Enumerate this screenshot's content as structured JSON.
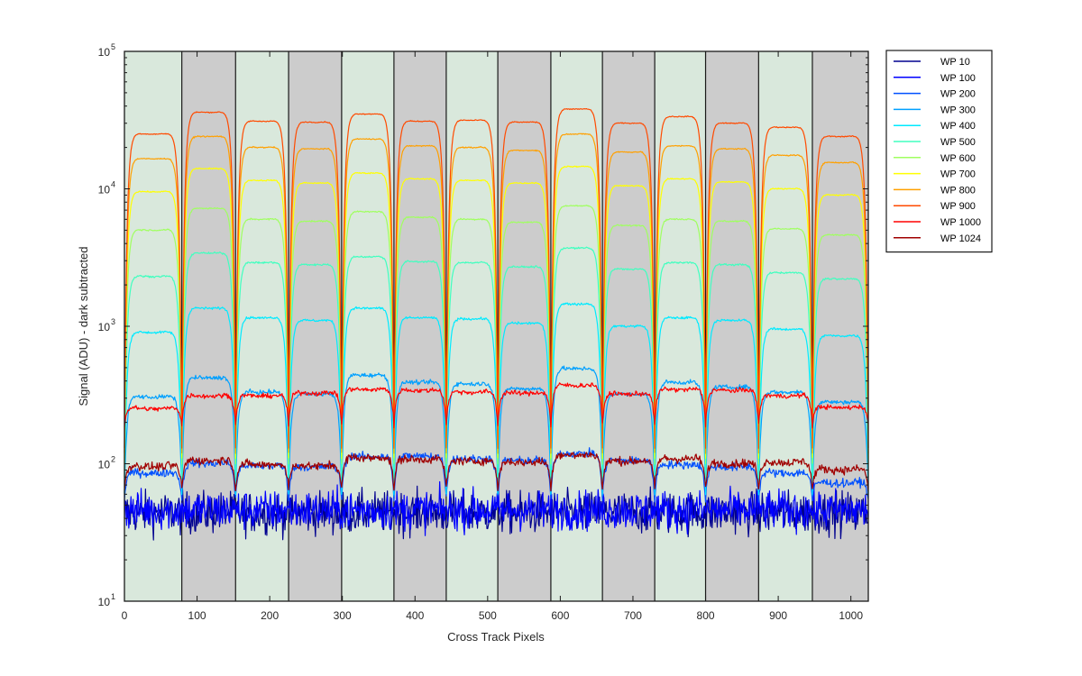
{
  "chart_data": {
    "type": "line",
    "title": "",
    "xlabel": "Cross Track Pixels",
    "ylabel": "Signal (ADU) - dark subtracted",
    "xlim": [
      0,
      1024
    ],
    "ylim": [
      10,
      100000
    ],
    "yscale": "log",
    "x_ticks": [
      0,
      100,
      200,
      300,
      400,
      500,
      600,
      700,
      800,
      900,
      1000
    ],
    "y_ticks": [
      {
        "base": "10",
        "exp": "1",
        "value": 10
      },
      {
        "base": "10",
        "exp": "2",
        "value": 100
      },
      {
        "base": "10",
        "exp": "3",
        "value": 1000
      },
      {
        "base": "10",
        "exp": "4",
        "value": 10000
      },
      {
        "base": "10",
        "exp": "5",
        "value": 100000
      }
    ],
    "grid": false,
    "legend_position": "outside right, top",
    "background_bands": {
      "colors": [
        "#d9e8dc",
        "#cccccc"
      ],
      "boundaries": [
        0,
        79,
        153,
        226,
        299,
        371,
        443,
        514,
        587,
        658,
        730,
        800,
        873,
        947,
        1024
      ]
    },
    "segment_centers": [
      40,
      116,
      189,
      262,
      335,
      407,
      479,
      551,
      622,
      694,
      765,
      836,
      910,
      985
    ],
    "series": [
      {
        "name": "WP 10",
        "color": "#00008f",
        "style": "noise",
        "level": 44,
        "noise": 0.16
      },
      {
        "name": "WP 100",
        "color": "#0000ff",
        "style": "noise",
        "level": 46,
        "noise": 0.15
      },
      {
        "name": "WP 200",
        "color": "#0050ff",
        "style": "plateau",
        "levels": [
          85,
          100,
          96,
          94,
          112,
          113,
          108,
          105,
          118,
          105,
          98,
          94,
          85,
          72
        ],
        "trough": 55,
        "noise": 0.07
      },
      {
        "name": "WP 300",
        "color": "#00a0ff",
        "style": "plateau",
        "levels": [
          305,
          420,
          330,
          320,
          440,
          390,
          380,
          350,
          490,
          320,
          390,
          360,
          330,
          280
        ],
        "trough": 60,
        "noise": 0.035
      },
      {
        "name": "WP 400",
        "color": "#00eaff",
        "style": "plateau",
        "levels": [
          900,
          1350,
          1150,
          1100,
          1350,
          1150,
          1130,
          1050,
          1450,
          1000,
          1150,
          1100,
          950,
          850
        ],
        "trough": 60,
        "noise": 0.02
      },
      {
        "name": "WP 500",
        "color": "#40ffbf",
        "style": "plateau",
        "levels": [
          2300,
          3400,
          2900,
          2800,
          3200,
          2950,
          2900,
          2700,
          3700,
          2600,
          2900,
          2800,
          2450,
          2200
        ],
        "trough": 80,
        "noise": 0.015
      },
      {
        "name": "WP 600",
        "color": "#a0ff60",
        "style": "plateau",
        "levels": [
          5000,
          7200,
          6000,
          5800,
          6800,
          6200,
          6000,
          5700,
          7500,
          5400,
          6000,
          5800,
          5100,
          4600
        ],
        "trough": 100,
        "noise": 0.012
      },
      {
        "name": "WP 700",
        "color": "#ffff00",
        "style": "plateau",
        "levels": [
          9500,
          14000,
          11500,
          11000,
          13000,
          11800,
          11500,
          11000,
          14500,
          10500,
          11800,
          11200,
          10000,
          9000
        ],
        "trough": 110,
        "noise": 0.01
      },
      {
        "name": "WP 800",
        "color": "#ffa000",
        "style": "plateau",
        "levels": [
          16500,
          24000,
          20000,
          19500,
          23000,
          20500,
          20000,
          19000,
          25000,
          18500,
          20500,
          19500,
          17500,
          15500
        ],
        "trough": 120,
        "noise": 0.01
      },
      {
        "name": "WP 900",
        "color": "#ff4a00",
        "style": "plateau",
        "levels": [
          25000,
          36000,
          31000,
          30500,
          35000,
          31000,
          31500,
          30500,
          38000,
          30000,
          33500,
          30000,
          28000,
          24000
        ],
        "trough": 130,
        "noise": 0.008
      },
      {
        "name": "WP 1000",
        "color": "#ff0000",
        "style": "plateau",
        "levels": [
          250,
          310,
          310,
          325,
          345,
          340,
          330,
          325,
          370,
          320,
          345,
          340,
          310,
          255
        ],
        "trough": 190,
        "noise": 0.04
      },
      {
        "name": "WP 1024",
        "color": "#a00000",
        "style": "plateau",
        "levels": [
          95,
          105,
          98,
          96,
          110,
          107,
          104,
          102,
          115,
          104,
          108,
          100,
          102,
          90
        ],
        "trough": 65,
        "noise": 0.07
      }
    ]
  }
}
